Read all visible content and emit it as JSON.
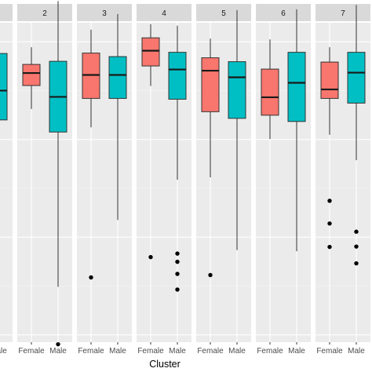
{
  "chart_data": {
    "type": "boxplot",
    "xlabel": "Cluster",
    "ylabel": "",
    "categories": [
      "Female",
      "Male"
    ],
    "colors": {
      "Female": "#F8766D",
      "Male": "#00BFC4"
    },
    "grid": true,
    "ylim": [
      0,
      1
    ],
    "panels": [
      {
        "strip": "",
        "boxes": [
          {
            "group": "Female",
            "visible": false
          },
          {
            "group": "Male",
            "q1": 0.65,
            "median": 0.725,
            "q3": 0.82,
            "partial": true,
            "outliers": []
          }
        ]
      },
      {
        "strip": "2",
        "boxes": [
          {
            "group": "Female",
            "min": 0.678,
            "q1": 0.738,
            "median": 0.77,
            "q3": 0.792,
            "max": 0.836,
            "outliers": []
          },
          {
            "group": "Male",
            "min": 0.223,
            "q1": 0.619,
            "median": 0.709,
            "q3": 0.8,
            "max": 0.954,
            "outliers": [
              0.076
            ]
          }
        ]
      },
      {
        "strip": "3",
        "boxes": [
          {
            "group": "Female",
            "min": 0.631,
            "q1": 0.705,
            "median": 0.765,
            "q3": 0.821,
            "max": 0.881,
            "outliers": [
              0.247
            ]
          },
          {
            "group": "Male",
            "min": 0.394,
            "q1": 0.705,
            "median": 0.765,
            "q3": 0.812,
            "max": 0.921,
            "outliers": []
          }
        ]
      },
      {
        "strip": "4",
        "boxes": [
          {
            "group": "Female",
            "min": 0.737,
            "q1": 0.788,
            "median": 0.827,
            "q3": 0.86,
            "max": 0.895,
            "outliers": [
              0.299
            ]
          },
          {
            "group": "Male",
            "min": 0.497,
            "q1": 0.703,
            "median": 0.779,
            "q3": 0.823,
            "max": 0.891,
            "outliers": [
              0.308,
              0.287,
              0.256,
              0.216
            ]
          }
        ]
      },
      {
        "strip": "5",
        "boxes": [
          {
            "group": "Female",
            "min": 0.503,
            "q1": 0.671,
            "median": 0.776,
            "q3": 0.809,
            "max": 0.858,
            "outliers": [
              0.253
            ]
          },
          {
            "group": "Male",
            "min": 0.317,
            "q1": 0.654,
            "median": 0.759,
            "q3": 0.799,
            "max": 0.931,
            "outliers": []
          }
        ]
      },
      {
        "strip": "6",
        "boxes": [
          {
            "group": "Female",
            "min": 0.601,
            "q1": 0.662,
            "median": 0.708,
            "q3": 0.78,
            "max": 0.856,
            "outliers": []
          },
          {
            "group": "Male",
            "min": 0.314,
            "q1": 0.646,
            "median": 0.745,
            "q3": 0.823,
            "max": 0.933,
            "outliers": []
          }
        ]
      },
      {
        "strip": "7",
        "boxes": [
          {
            "group": "Female",
            "min": 0.612,
            "q1": 0.705,
            "median": 0.728,
            "q3": 0.798,
            "max": 0.836,
            "outliers": [
              0.443,
              0.385,
              0.325
            ]
          },
          {
            "group": "Male",
            "min": 0.547,
            "q1": 0.693,
            "median": 0.771,
            "q3": 0.823,
            "max": 0.944,
            "outliers": [
              0.364,
              0.326,
              0.283
            ]
          }
        ]
      }
    ]
  }
}
